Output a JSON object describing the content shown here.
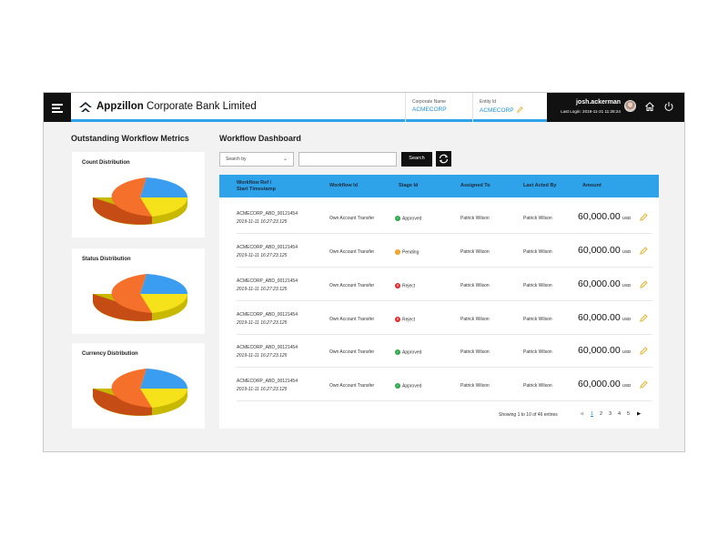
{
  "header": {
    "brand_bold": "Appzillon",
    "brand_rest": " Corporate Bank Limited",
    "corporate_name_label": "Corporate Name",
    "corporate_name_value": "ACMECORP",
    "entity_id_label": "Entity Id",
    "entity_id_value": "ACMECORP",
    "user_name": "josh.ackerman",
    "last_login": "Last Login: 2019-11-21 11:28:24"
  },
  "metrics": {
    "title": "Outstanding Workflow Metrics",
    "cards": [
      {
        "title": "Count Distribution"
      },
      {
        "title": "Status Distribution"
      },
      {
        "title": "Currency Distribution"
      }
    ]
  },
  "workflow": {
    "title": "Workflow Dashboard",
    "search_select": "Search by",
    "search_button": "Search",
    "columns": {
      "ref_line1": "Workflow Ref /",
      "ref_line2": "Start Timestamp",
      "workflow_id": "Workflow Id",
      "stage_id": "Stage Id",
      "assigned_to": "Assigned To",
      "last_acted_by": "Last Acted By",
      "amount": "Amount"
    },
    "rows": [
      {
        "ref": "ACMECORP_ABD_00121454",
        "ts": "2019-11-11 16:27:23.125",
        "workflow_id": "Own Account Transfer",
        "stage": "Approved",
        "stage_color": "#2ea84a",
        "assigned_to": "Patrick Wilson",
        "last_acted_by": "Patrick Wilson",
        "amount": "60,000.00",
        "currency": "USD"
      },
      {
        "ref": "ACMECORP_ABD_00121454",
        "ts": "2019-11-11 16:27:23.125",
        "workflow_id": "Own Account Transfer",
        "stage": "Pending",
        "stage_color": "#f0a020",
        "assigned_to": "Patrick Wilson",
        "last_acted_by": "Patrick Wilson",
        "amount": "60,000.00",
        "currency": "USD"
      },
      {
        "ref": "ACMECORP_ABD_00121454",
        "ts": "2019-11-11 16:27:23.125",
        "workflow_id": "Own Account Transfer",
        "stage": "Reject",
        "stage_color": "#e02a2a",
        "assigned_to": "Patrick Wilson",
        "last_acted_by": "Patrick Wilson",
        "amount": "60,000.00",
        "currency": "USD"
      },
      {
        "ref": "ACMECORP_ABD_00121454",
        "ts": "2019-11-11 16:27:23.125",
        "workflow_id": "Own Account Transfer",
        "stage": "Reject",
        "stage_color": "#e02a2a",
        "assigned_to": "Patrick Wilson",
        "last_acted_by": "Patrick Wilson",
        "amount": "60,000.00",
        "currency": "USD"
      },
      {
        "ref": "ACMECORP_ABD_00121454",
        "ts": "2019-11-11 16:27:23.125",
        "workflow_id": "Own Account Transfer",
        "stage": "Approved",
        "stage_color": "#2ea84a",
        "assigned_to": "Patrick Wilson",
        "last_acted_by": "Patrick Wilson",
        "amount": "60,000.00",
        "currency": "USD"
      },
      {
        "ref": "ACMECORP_ABD_00121454",
        "ts": "2019-11-11 16:27:23.125",
        "workflow_id": "Own Account Transfer",
        "stage": "Approved",
        "stage_color": "#2ea84a",
        "assigned_to": "Patrick Wilson",
        "last_acted_by": "Patrick Wilson",
        "amount": "60,000.00",
        "currency": "USD"
      }
    ],
    "pager": {
      "info": "Showing 1 to 10 of 46 entries",
      "prev": "◀",
      "pages": [
        "1",
        "2",
        "3",
        "4",
        "5"
      ],
      "next": "▶"
    }
  },
  "colors": {
    "accent": "#2fa3ea",
    "pie_blue": "#3a9df0",
    "pie_orange": "#f5702a",
    "pie_yellow": "#f5e21a"
  }
}
